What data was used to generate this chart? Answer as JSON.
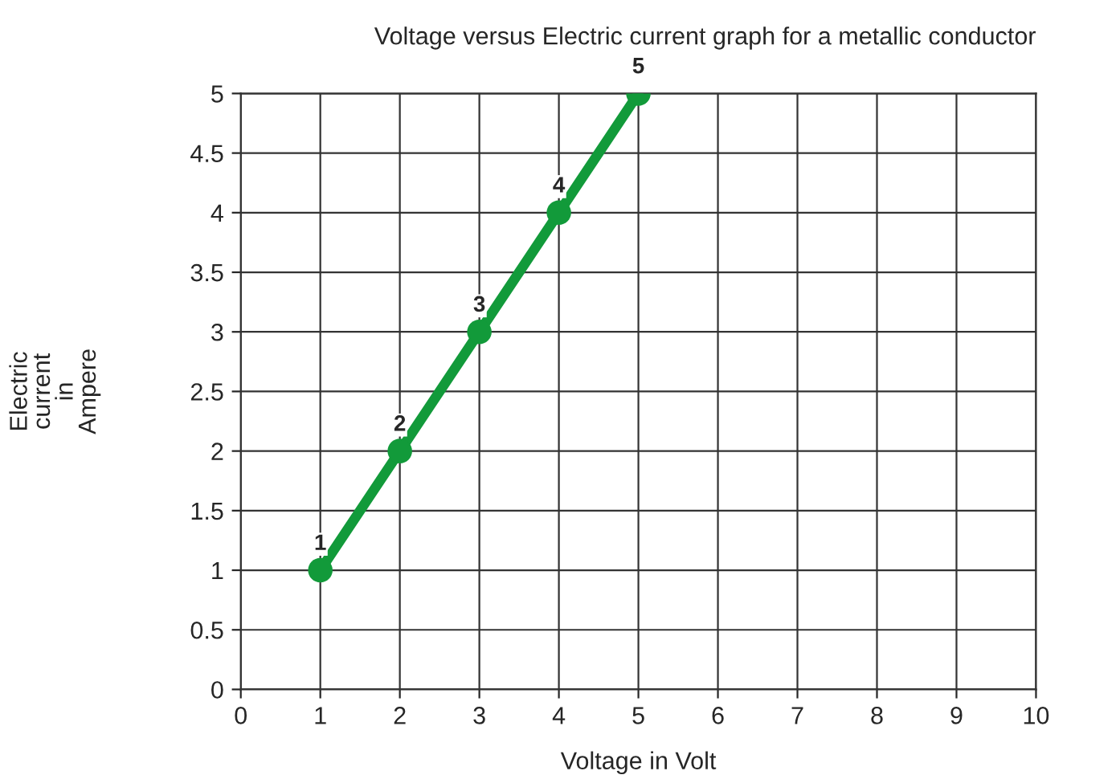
{
  "chart_data": {
    "type": "line",
    "title": "Voltage versus Electric current graph for a metallic conductor",
    "xlabel": "Voltage in Volt",
    "ylabel": "Electric current in Ampere",
    "x": [
      1,
      2,
      3,
      4,
      5
    ],
    "series": [
      {
        "color": "#129a3a",
        "values": [
          1,
          2,
          3,
          4,
          5
        ]
      }
    ],
    "xlim": [
      0,
      10
    ],
    "xticks": [
      0,
      1,
      2,
      3,
      4,
      5,
      6,
      7,
      8,
      9,
      10
    ],
    "ylim": [
      0,
      5
    ],
    "yticks": [
      0,
      0.5,
      1,
      1.5,
      2,
      2.5,
      3,
      3.5,
      4,
      4.5,
      5
    ],
    "grid": true,
    "marker": "circle",
    "line_style": "solid",
    "data_labels": true
  }
}
